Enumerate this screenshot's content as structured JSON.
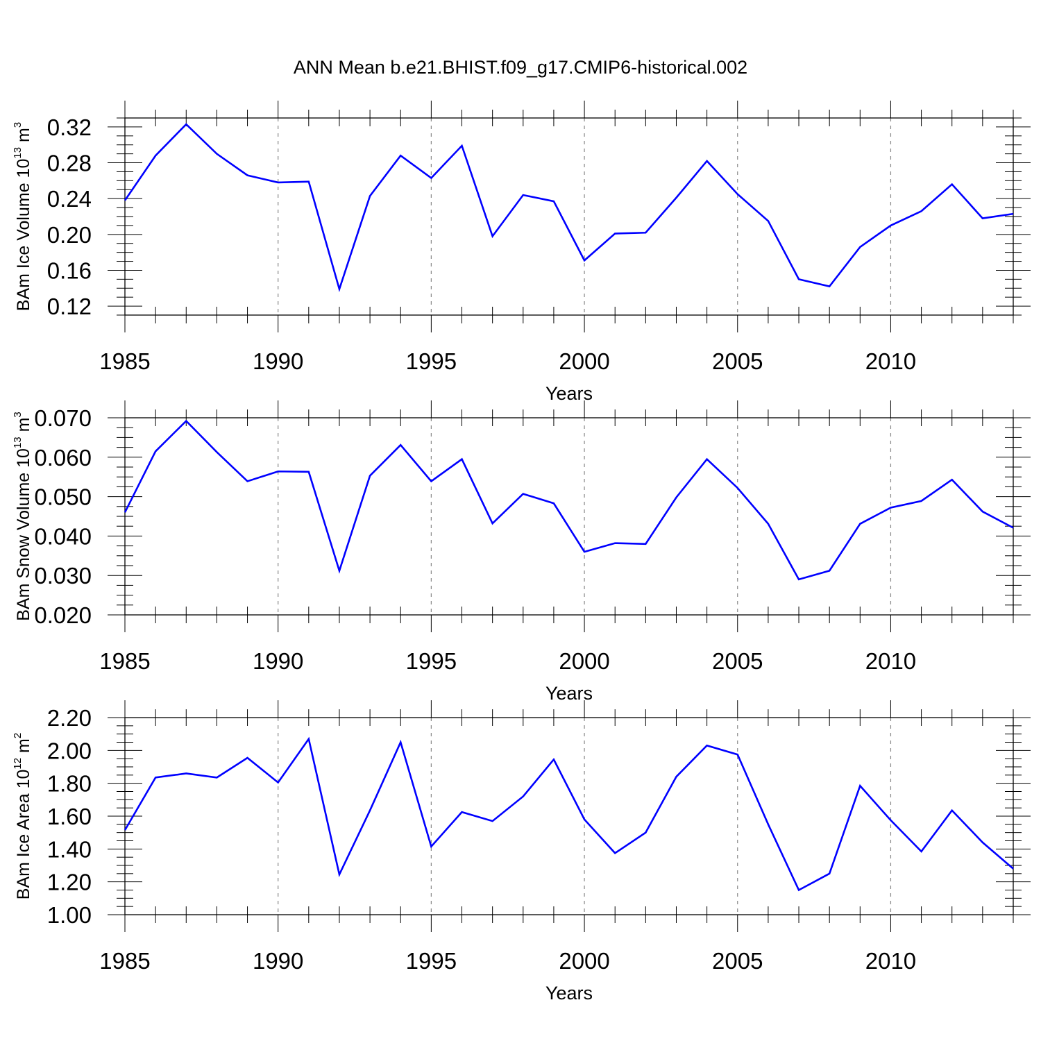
{
  "title": "ANN Mean b.e21.BHIST.f09_g17.CMIP6-historical.002",
  "colors": {
    "line": "#0000ff",
    "axis": "#000000",
    "grid": "#888888"
  },
  "chart_data": [
    {
      "type": "line",
      "xlabel": "Years",
      "ylabel": {
        "text": "BAm Ice Volume 10",
        "exp": "13",
        "unit": "m",
        "unit_exp": "3"
      },
      "xlim": [
        1985,
        2014
      ],
      "ylim": [
        0.11,
        0.33
      ],
      "x_ticks": [
        1985,
        1990,
        1995,
        2000,
        2005,
        2010
      ],
      "x_tick_labels": [
        "1985",
        "1990",
        "1995",
        "2000",
        "2005",
        "2010"
      ],
      "y_ticks": [
        0.12,
        0.16,
        0.2,
        0.24,
        0.28,
        0.32
      ],
      "y_tick_labels": [
        "0.12",
        "0.16",
        "0.20",
        "0.24",
        "0.28",
        "0.32"
      ],
      "grid": "vertical dashed at major x ticks",
      "x": [
        1985,
        1986,
        1987,
        1988,
        1989,
        1990,
        1991,
        1992,
        1993,
        1994,
        1995,
        1996,
        1997,
        1998,
        1999,
        2000,
        2001,
        2002,
        2003,
        2004,
        2005,
        2006,
        2007,
        2008,
        2009,
        2010,
        2011,
        2012,
        2013,
        2014
      ],
      "values": [
        0.238,
        0.288,
        0.323,
        0.29,
        0.266,
        0.258,
        0.259,
        0.139,
        0.243,
        0.288,
        0.263,
        0.299,
        0.198,
        0.244,
        0.237,
        0.171,
        0.201,
        0.202,
        0.241,
        0.282,
        0.245,
        0.215,
        0.15,
        0.142,
        0.186,
        0.21,
        0.226,
        0.256,
        0.218,
        0.223
      ]
    },
    {
      "type": "line",
      "xlabel": "Years",
      "ylabel": {
        "text": "BAm Snow Volume 10",
        "exp": "13",
        "unit": "m",
        "unit_exp": "3"
      },
      "xlim": [
        1985,
        2014
      ],
      "ylim": [
        0.02,
        0.07
      ],
      "x_ticks": [
        1985,
        1990,
        1995,
        2000,
        2005,
        2010
      ],
      "x_tick_labels": [
        "1985",
        "1990",
        "1995",
        "2000",
        "2005",
        "2010"
      ],
      "y_ticks": [
        0.02,
        0.03,
        0.04,
        0.05,
        0.06,
        0.07
      ],
      "y_tick_labels": [
        "0.020",
        "0.030",
        "0.040",
        "0.050",
        "0.060",
        "0.070"
      ],
      "grid": "vertical dashed at major x ticks",
      "x": [
        1985,
        1986,
        1987,
        1988,
        1989,
        1990,
        1991,
        1992,
        1993,
        1994,
        1995,
        1996,
        1997,
        1998,
        1999,
        2000,
        2001,
        2002,
        2003,
        2004,
        2005,
        2006,
        2007,
        2008,
        2009,
        2010,
        2011,
        2012,
        2013,
        2014
      ],
      "values": [
        0.046,
        0.0615,
        0.0692,
        0.0613,
        0.0539,
        0.0564,
        0.0563,
        0.0312,
        0.0553,
        0.0631,
        0.0539,
        0.0595,
        0.0432,
        0.0507,
        0.0483,
        0.036,
        0.0382,
        0.038,
        0.0498,
        0.0595,
        0.0522,
        0.0431,
        0.029,
        0.0312,
        0.0431,
        0.0472,
        0.0489,
        0.0543,
        0.0462,
        0.0421
      ]
    },
    {
      "type": "line",
      "xlabel": "Years",
      "ylabel": {
        "text": "BAm Ice Area 10",
        "exp": "12",
        "unit": "m",
        "unit_exp": "2"
      },
      "xlim": [
        1985,
        2014
      ],
      "ylim": [
        1.0,
        2.2
      ],
      "x_ticks": [
        1985,
        1990,
        1995,
        2000,
        2005,
        2010
      ],
      "x_tick_labels": [
        "1985",
        "1990",
        "1995",
        "2000",
        "2005",
        "2010"
      ],
      "y_ticks": [
        1.0,
        1.2,
        1.4,
        1.6,
        1.8,
        2.0,
        2.2
      ],
      "y_tick_labels": [
        "1.00",
        "1.20",
        "1.40",
        "1.60",
        "1.80",
        "2.00",
        "2.20"
      ],
      "grid": "vertical dashed at major x ticks",
      "x": [
        1985,
        1986,
        1987,
        1988,
        1989,
        1990,
        1991,
        1992,
        1993,
        1994,
        1995,
        1996,
        1997,
        1998,
        1999,
        2000,
        2001,
        2002,
        2003,
        2004,
        2005,
        2006,
        2007,
        2008,
        2009,
        2010,
        2011,
        2012,
        2013,
        2014
      ],
      "values": [
        1.515,
        1.835,
        1.86,
        1.835,
        1.955,
        1.805,
        2.07,
        1.245,
        1.635,
        2.05,
        1.415,
        1.625,
        1.57,
        1.72,
        1.945,
        1.58,
        1.375,
        1.5,
        1.84,
        2.03,
        1.975,
        1.55,
        1.15,
        1.25,
        1.785,
        1.575,
        1.385,
        1.635,
        1.44,
        1.28
      ]
    }
  ]
}
